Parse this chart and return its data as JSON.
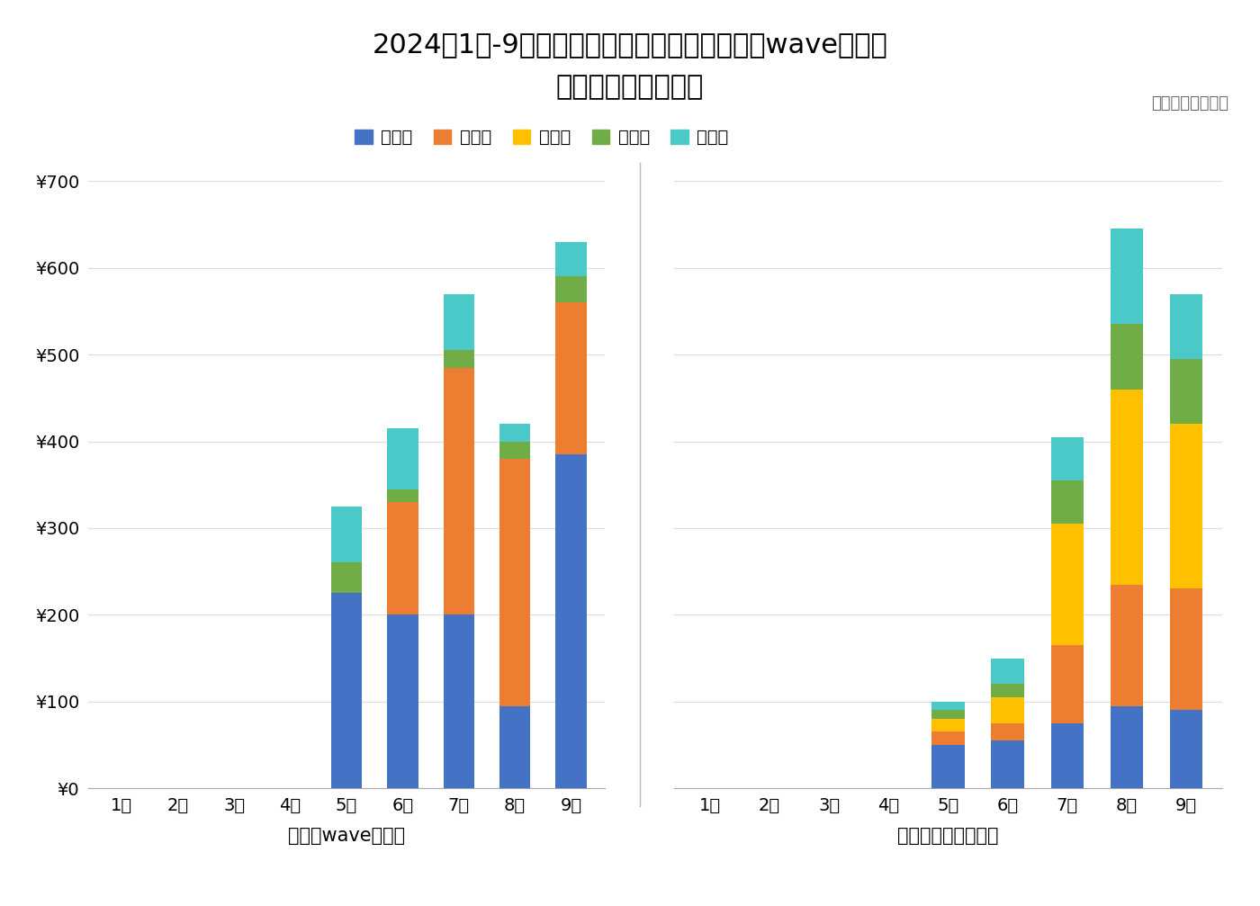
{
  "title_line1": "2024年1月-9月，外星人低糖电解质水、外星人wave风味水",
  "title_line2": "各业态店均卖力变动",
  "source_text": "数据来源：马上赢",
  "legend_labels": [
    "便利店",
    "大超市",
    "大卖场",
    "食杂店",
    "小超市"
  ],
  "colors": [
    "#4472C4",
    "#ED7D31",
    "#FFC000",
    "#70AD47",
    "#4BC8C8"
  ],
  "months": [
    "1月",
    "2月",
    "3月",
    "4月",
    "5月",
    "6月",
    "7月",
    "8月",
    "9月"
  ],
  "wave_label": "外星人wave风味水",
  "electrolyte_label": "外星人低糖电解质水",
  "wave_data": {
    "便利店": [
      0,
      0,
      0,
      0,
      225,
      200,
      200,
      95,
      385
    ],
    "大超市": [
      0,
      0,
      0,
      0,
      0,
      130,
      285,
      285,
      175
    ],
    "大卖场": [
      0,
      0,
      0,
      0,
      0,
      0,
      0,
      0,
      0
    ],
    "食杂店": [
      0,
      0,
      0,
      0,
      35,
      15,
      20,
      20,
      30
    ],
    "小超市": [
      0,
      0,
      0,
      0,
      65,
      70,
      65,
      20,
      40
    ]
  },
  "electrolyte_data": {
    "便利店": [
      0,
      0,
      0,
      0,
      50,
      55,
      75,
      95,
      90
    ],
    "大超市": [
      0,
      0,
      0,
      0,
      15,
      20,
      90,
      140,
      140
    ],
    "大卖场": [
      0,
      0,
      0,
      0,
      15,
      30,
      140,
      225,
      190
    ],
    "食杂店": [
      0,
      0,
      0,
      0,
      10,
      15,
      50,
      75,
      75
    ],
    "小超市": [
      0,
      0,
      0,
      0,
      10,
      30,
      50,
      110,
      75
    ]
  },
  "ylim": [
    0,
    700
  ],
  "yticks": [
    0,
    100,
    200,
    300,
    400,
    500,
    600,
    700
  ],
  "background_color": "#FFFFFF",
  "bar_width": 0.55,
  "title_fontsize": 22,
  "tick_fontsize": 14,
  "legend_fontsize": 14,
  "label_fontsize": 15,
  "source_fontsize": 13
}
